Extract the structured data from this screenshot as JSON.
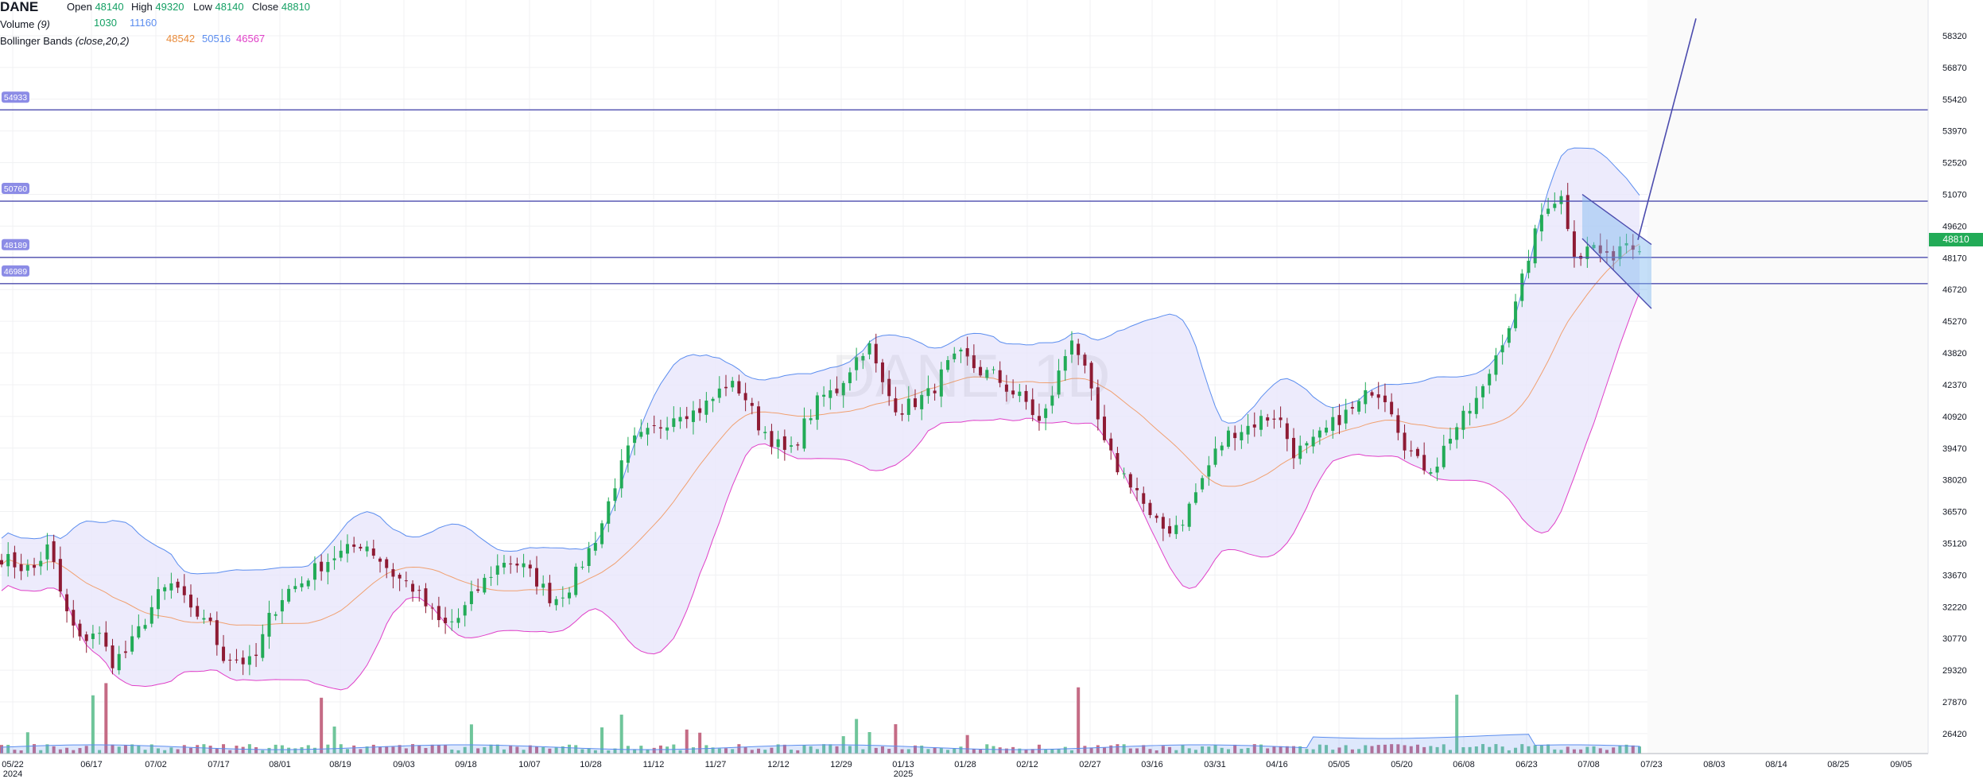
{
  "legend": {
    "symbol": "DANE",
    "open_label": "Open",
    "open_value": "48140",
    "high_label": "High",
    "high_value": "49320",
    "low_label": "Low",
    "low_value": "48140",
    "close_label": "Close",
    "close_value": "48810",
    "volume_label": "Volume",
    "volume_param": "(9)",
    "volume_value": "1030",
    "volume_ma_value": "11160",
    "bb_label": "Bollinger Bands",
    "bb_param": "(close,20,2)",
    "bb_basis": "48542",
    "bb_upper": "50516",
    "bb_lower": "46567"
  },
  "watermark": "DANE, 1D",
  "current_price": "48810",
  "colors": {
    "up": "#22ab57",
    "down": "#8e1b34",
    "bb_upper": "#5b8def",
    "bb_lower": "#e040c8",
    "bb_basis": "#f0a070",
    "bb_fill": "#e9e6fb",
    "hline": "#4c4cae",
    "tag": "#8c8ce6",
    "price_tag": "#22ab57",
    "legend_green": "#14a064",
    "legend_blue": "#5b8def",
    "legend_orange": "#e88b3b",
    "legend_purple": "#e040c8"
  },
  "chart_data": {
    "type": "candlestick",
    "yaxis_ticks": [
      "58320",
      "56870",
      "55420",
      "53970",
      "52520",
      "51070",
      "49620",
      "48170",
      "46720",
      "45270",
      "43820",
      "42370",
      "40920",
      "39470",
      "38020",
      "36570",
      "35120",
      "33670",
      "32220",
      "30770",
      "29320",
      "27870",
      "26420"
    ],
    "xaxis_ticks": [
      "05/22",
      "06/17",
      "07/02",
      "07/17",
      "08/01",
      "08/19",
      "09/03",
      "09/18",
      "10/07",
      "10/28",
      "11/12",
      "11/27",
      "12/12",
      "12/29",
      "01/13",
      "01/28",
      "02/12",
      "02/27",
      "03/16",
      "03/31",
      "04/16",
      "05/05",
      "05/20",
      "06/08",
      "06/23",
      "07/08",
      "07/23",
      "08/03",
      "08/14",
      "08/25",
      "09/05"
    ],
    "xaxis_year_labels": [
      {
        "tick": "05/22",
        "year": "2024"
      },
      {
        "tick": "01/13",
        "year": "2025"
      }
    ],
    "horizontal_levels": [
      "54933",
      "50760",
      "48189",
      "46989"
    ],
    "price_path": [
      34500,
      34100,
      33900,
      35000,
      32100,
      30600,
      31200,
      29700,
      30200,
      31500,
      32800,
      33300,
      31900,
      31800,
      30000,
      29800,
      29600,
      31700,
      32900,
      33300,
      34000,
      34500,
      34800,
      35200,
      34400,
      33600,
      33200,
      32200,
      31300,
      31700,
      32800,
      33700,
      34400,
      34100,
      33400,
      32500,
      33100,
      34400,
      35800,
      38000,
      39700,
      40100,
      40600,
      41200,
      41100,
      41600,
      42400,
      42100,
      40600,
      39800,
      39100,
      40600,
      41800,
      42100,
      43300,
      44300,
      42200,
      41200,
      41600,
      42000,
      43200,
      43700,
      43000,
      42800,
      42100,
      41600,
      40500,
      42600,
      44700,
      42400,
      39600,
      38400,
      37700,
      36100,
      35700,
      36200,
      37700,
      39200,
      40200,
      40400,
      40800,
      41000,
      39300,
      39500,
      40200,
      40900,
      41300,
      42200,
      41800,
      39800,
      38700,
      38600,
      40100,
      41000,
      42000,
      44000,
      45600,
      48400,
      50600,
      51000,
      48100,
      48800,
      48000,
      49000,
      48810
    ],
    "trend_channel": {
      "upper_start": 51070,
      "upper_end": 48780,
      "lower_start": 49050,
      "lower_end": 45850
    },
    "trend_line": {
      "start": 48990,
      "end": 59110
    }
  }
}
